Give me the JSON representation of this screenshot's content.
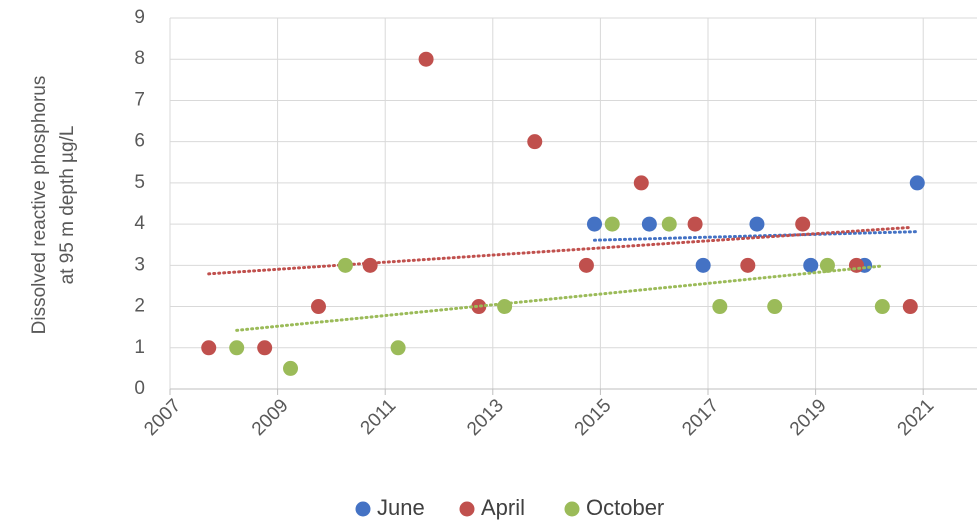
{
  "chart_data": {
    "type": "scatter",
    "y_label": [
      "Dissolved reactive phosphorus",
      "at 95 m depth µg/L"
    ],
    "xlim": [
      2007,
      2022
    ],
    "xticks": [
      2007,
      2009,
      2011,
      2013,
      2015,
      2017,
      2019,
      2021
    ],
    "ylim": [
      0,
      9
    ],
    "yticks": [
      0,
      1,
      2,
      3,
      4,
      5,
      6,
      7,
      8,
      9
    ],
    "grid": true,
    "trendline": true,
    "legend": "bottom",
    "series": [
      {
        "name": "June",
        "color": "#4472c4",
        "x": [
          2014.89,
          2015.91,
          2016.91,
          2017.91,
          2018.91,
          2019.91,
          2020.89
        ],
        "values": [
          4,
          4,
          3,
          4,
          3,
          3,
          5
        ]
      },
      {
        "name": "April",
        "color": "#c0504d",
        "x": [
          2007.72,
          2008.76,
          2009.76,
          2010.72,
          2011.76,
          2012.74,
          2013.78,
          2014.74,
          2015.76,
          2016.76,
          2017.74,
          2018.76,
          2019.76,
          2020.76
        ],
        "values": [
          1,
          1,
          2,
          3,
          8,
          2,
          6,
          3,
          5,
          4,
          3,
          4,
          3,
          2
        ]
      },
      {
        "name": "October",
        "color": "#9bbb59",
        "x": [
          2008.24,
          2009.24,
          2010.26,
          2011.24,
          2013.22,
          2015.22,
          2016.28,
          2017.22,
          2018.24,
          2019.22,
          2020.24
        ],
        "values": [
          1,
          0.5,
          3,
          1,
          2,
          4,
          4,
          2,
          2,
          3,
          2
        ]
      }
    ]
  }
}
